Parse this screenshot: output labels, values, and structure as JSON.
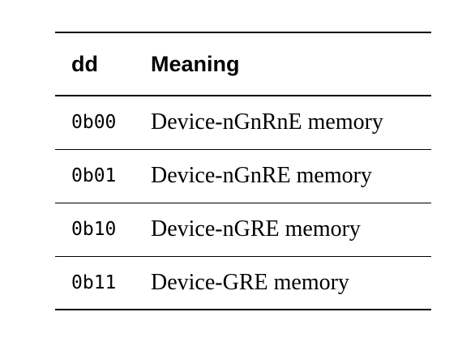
{
  "table": {
    "headers": [
      "dd",
      "Meaning"
    ],
    "rows": [
      [
        "0b00",
        "Device-nGnRnE memory"
      ],
      [
        "0b01",
        "Device-nGnRE memory"
      ],
      [
        "0b10",
        "Device-nGRE memory"
      ],
      [
        "0b11",
        "Device-GRE memory"
      ]
    ]
  }
}
